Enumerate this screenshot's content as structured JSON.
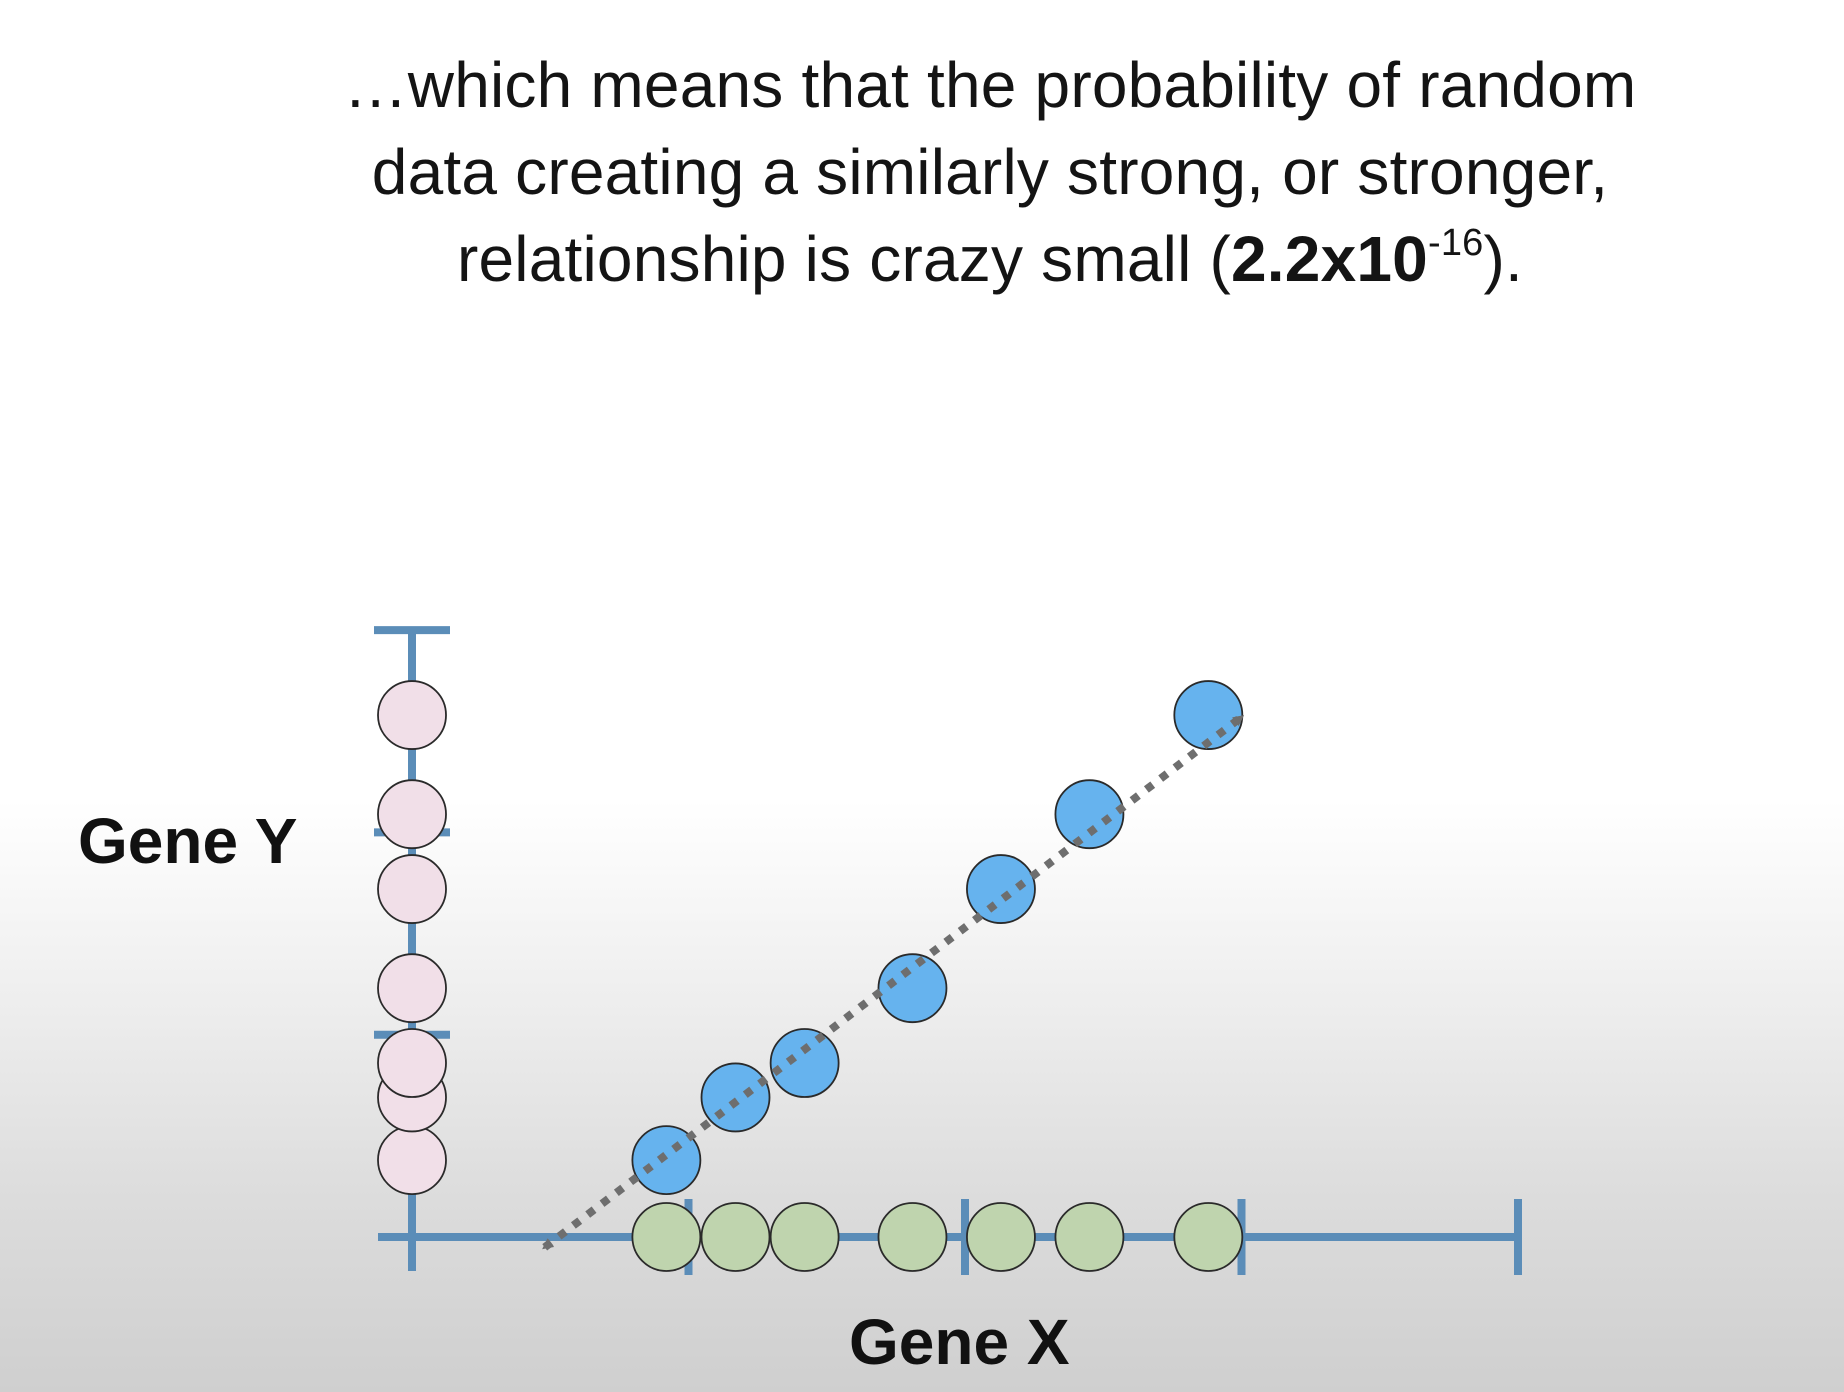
{
  "caption": {
    "line1": "…which means that the probability of random",
    "line2": "data creating a similarly strong, or stronger,",
    "line3_prefix": "relationship is crazy small (",
    "pvalue_mantissa": "2.2",
    "pvalue_times": "x",
    "pvalue_base": "10",
    "pvalue_exponent": "-16",
    "line3_suffix": ")."
  },
  "chart_data": {
    "type": "scatter",
    "xlabel": "Gene X",
    "ylabel": "Gene Y",
    "xlim": [
      0,
      4
    ],
    "ylim": [
      0,
      3
    ],
    "x_ticks": [
      1,
      2,
      3,
      4
    ],
    "y_ticks": [
      1,
      2,
      3
    ],
    "series": [
      {
        "x": [
          0.92,
          1.17,
          1.42,
          1.81,
          2.13,
          2.45,
          2.88
        ],
        "y": [
          0.38,
          0.69,
          0.86,
          1.23,
          1.72,
          2.09,
          2.58
        ]
      }
    ],
    "x_projection": [
      0.92,
      1.17,
      1.42,
      1.81,
      2.13,
      2.45,
      2.88
    ],
    "y_projection": [
      0.38,
      0.69,
      0.86,
      1.23,
      1.72,
      2.09,
      2.58
    ],
    "trend_line": {
      "style": "dotted",
      "arrows": "both",
      "slope": 1.04,
      "intercept": -0.55
    },
    "colors": {
      "axis": "#5b8db8",
      "points": "#66b3ee",
      "x_projection": "#bfd4ae",
      "y_projection": "#f1dfe8",
      "point_outline": "#2a2a2a",
      "trend_line": "#6e6e6e"
    },
    "grid": false,
    "legend": "none"
  }
}
